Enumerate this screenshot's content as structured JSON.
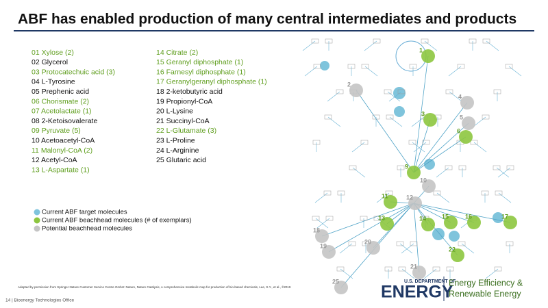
{
  "header": {
    "title": "ABF has enabled production of many central intermediates and products"
  },
  "list": {
    "columns": [
      [
        {
          "text": "01 Xylose (2)",
          "color": "#5f9e1e"
        },
        {
          "text": "02 Glycerol",
          "color": "#111111"
        },
        {
          "text": "03 Protocatechuic acid (3)",
          "color": "#5f9e1e"
        },
        {
          "text": "04 L-Tyrosine",
          "color": "#111111"
        },
        {
          "text": "05 Prephenic acid",
          "color": "#111111"
        },
        {
          "text": "06 Chorismate (2)",
          "color": "#5f9e1e"
        },
        {
          "text": "07 Acetolactate (1)",
          "color": "#5f9e1e"
        },
        {
          "text": "08 2-Ketoisovalerate",
          "color": "#111111"
        },
        {
          "text": "09 Pyruvate (5)",
          "color": "#5f9e1e"
        },
        {
          "text": "10 Acetoacetyl-CoA",
          "color": "#111111"
        },
        {
          "text": "11 Malonyl-CoA (2)",
          "color": "#5f9e1e"
        },
        {
          "text": "12 Acetyl-CoA",
          "color": "#111111"
        },
        {
          "text": "13 L-Aspartate (1)",
          "color": "#5f9e1e"
        }
      ],
      [
        {
          "text": "14 Citrate (2)",
          "color": "#5f9e1e"
        },
        {
          "text": "15 Geranyl diphosphate (1)",
          "color": "#5f9e1e"
        },
        {
          "text": "16 Farnesyl diphosphate (1)",
          "color": "#5f9e1e"
        },
        {
          "text": "17 Geranylgeranyl diphosphate (1)",
          "color": "#5f9e1e"
        },
        {
          "text": "18 2-ketobutyric acid",
          "color": "#111111"
        },
        {
          "text": "19 Propionyl-CoA",
          "color": "#111111"
        },
        {
          "text": "20 L-Lysine",
          "color": "#111111"
        },
        {
          "text": "21 Succinyl-CoA",
          "color": "#111111"
        },
        {
          "text": "22 L-Glutamate (3)",
          "color": "#5f9e1e"
        },
        {
          "text": "23 L-Proline",
          "color": "#111111"
        },
        {
          "text": "24 L-Arginine",
          "color": "#111111"
        },
        {
          "text": "25 Glutaric acid",
          "color": "#111111"
        }
      ]
    ]
  },
  "legend": [
    {
      "text": "Current ABF target molecules",
      "color": "#7fc4dc"
    },
    {
      "text": "Current ABF beachhead molecules (# of exemplars)",
      "color": "#8dc63f"
    },
    {
      "text": "Potential beachhead molecules",
      "color": "#c4c4c4"
    }
  ],
  "map": {
    "nodes": [
      {
        "label": "1",
        "color": "#8dc63f"
      },
      {
        "label": "2",
        "color": "#c4c4c4"
      },
      {
        "label": "3",
        "color": "#8dc63f"
      },
      {
        "label": "4",
        "color": "#c4c4c4"
      },
      {
        "label": "5",
        "color": "#c4c4c4"
      },
      {
        "label": "6",
        "color": "#8dc63f"
      },
      {
        "label": "9",
        "color": "#8dc63f"
      },
      {
        "label": "10",
        "color": "#c4c4c4"
      },
      {
        "label": "11",
        "color": "#8dc63f"
      },
      {
        "label": "12",
        "color": "#c4c4c4"
      },
      {
        "label": "13",
        "color": "#8dc63f"
      },
      {
        "label": "14",
        "color": "#8dc63f"
      },
      {
        "label": "15",
        "color": "#8dc63f"
      },
      {
        "label": "16",
        "color": "#8dc63f"
      },
      {
        "label": "17",
        "color": "#8dc63f"
      },
      {
        "label": "18",
        "color": "#c4c4c4"
      },
      {
        "label": "19",
        "color": "#c4c4c4"
      },
      {
        "label": "20",
        "color": "#c4c4c4"
      },
      {
        "label": "21",
        "color": "#c4c4c4"
      },
      {
        "label": "22",
        "color": "#8dc63f"
      },
      {
        "label": "25",
        "color": "#c4c4c4"
      }
    ]
  },
  "footnote": "Adapted by permission from Springer Nature Customer Service Centre GmbH: Nature, Nature Catalysis, A comprehensive metabolic map for production of bio-based chemicals, Lee, S.Y., et al., ©2019",
  "footer": "14 | Bioenergy Technologies Office",
  "logo": {
    "line1": "U.S. DEPARTMENT OF",
    "line2": "ENERGY",
    "line3": "Energy Efficiency &",
    "line4": "Renewable Energy"
  }
}
